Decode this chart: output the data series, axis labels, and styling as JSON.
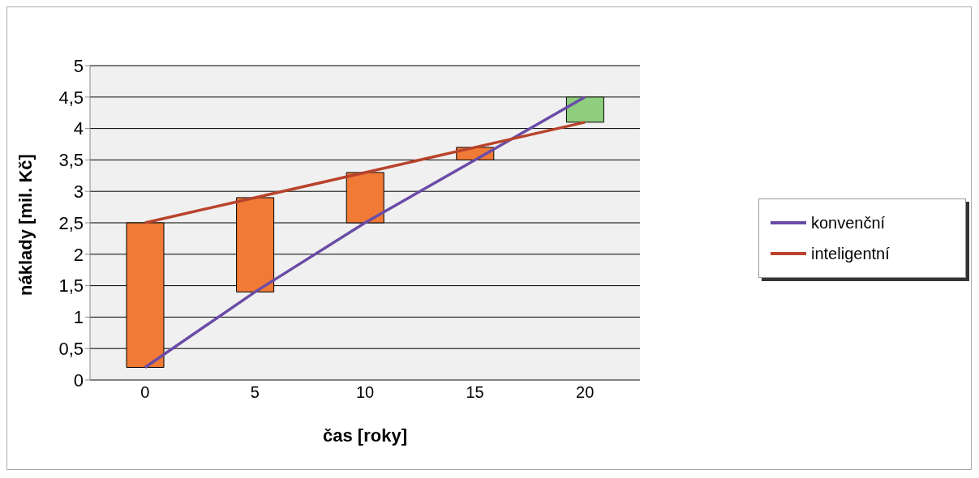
{
  "chart_data": {
    "type": "line",
    "xlabel": "čas [roky]",
    "ylabel": "náklady [mil. Kč]",
    "categories": [
      "0",
      "5",
      "10",
      "15",
      "20"
    ],
    "series": [
      {
        "type": "bar",
        "values": [
          2.3,
          1.5,
          0.8,
          0.2,
          0.4
        ],
        "base": [
          0.2,
          1.4,
          2.5,
          3.5,
          4.1
        ],
        "colors": [
          "#f07a36",
          "#f07a36",
          "#f07a36",
          "#f07a36",
          "#8fce7e"
        ]
      },
      {
        "name": "konvenční",
        "color": "#6a4ca6",
        "values": [
          0.2,
          1.4,
          2.5,
          3.5,
          4.5
        ]
      },
      {
        "name": "inteligentní",
        "color": "#b8432c",
        "values": [
          2.5,
          2.9,
          3.3,
          3.7,
          4.1
        ]
      }
    ],
    "ylim": [
      0,
      5
    ],
    "yticks": [
      0,
      {
        "value": 0.5,
        "label": "0,5"
      },
      1,
      {
        "value": 1.5,
        "label": "1,5"
      },
      2,
      {
        "value": 2.5,
        "label": "2,5"
      },
      3,
      {
        "value": 3.5,
        "label": "3,5"
      },
      4,
      {
        "value": 4.5,
        "label": "4,5"
      },
      5
    ],
    "grid": "y",
    "legend": "right",
    "marker": "none"
  }
}
